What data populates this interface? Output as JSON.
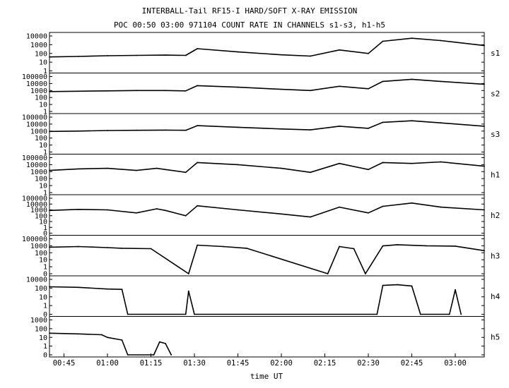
{
  "chart_data": {
    "type": "line",
    "title": "INTERBALL-Tail RF15-I HARD/SOFT X-RAY EMISSION",
    "subtitle": "POC 00:50 03:00 971104  COUNT RATE IN CHANNELS s1-s3, h1-h5",
    "xlabel": "time UT",
    "x_ticks": [
      "00:45",
      "01:00",
      "01:15",
      "01:30",
      "01:45",
      "02:00",
      "02:15",
      "02:30",
      "02:45",
      "03:00"
    ],
    "xlim": [
      "00:40",
      "03:10"
    ],
    "yscale": "log",
    "grid": false,
    "panels": [
      {
        "name": "s1",
        "ytick_labels": [
          "10000",
          "1000",
          "100",
          "10",
          "1"
        ],
        "x": [
          "00:40",
          "00:50",
          "01:00",
          "01:10",
          "01:20",
          "01:27",
          "01:31",
          "01:45",
          "02:00",
          "02:10",
          "02:20",
          "02:30",
          "02:35",
          "02:45",
          "02:55",
          "03:10"
        ],
        "values": [
          40,
          45,
          55,
          60,
          65,
          60,
          350,
          150,
          70,
          50,
          250,
          100,
          2500,
          5500,
          3000,
          800
        ]
      },
      {
        "name": "s2",
        "ytick_labels": [
          "100000",
          "10000",
          "1000",
          "100",
          "10",
          "1"
        ],
        "x": [
          "00:40",
          "00:50",
          "01:00",
          "01:10",
          "01:20",
          "01:27",
          "01:31",
          "01:45",
          "02:00",
          "02:10",
          "02:20",
          "02:30",
          "02:35",
          "02:45",
          "02:55",
          "03:10"
        ],
        "values": [
          700,
          800,
          900,
          1000,
          1000,
          900,
          5000,
          3000,
          1500,
          1000,
          4000,
          1800,
          20000,
          40000,
          20000,
          8000
        ]
      },
      {
        "name": "s3",
        "ytick_labels": [
          "100000",
          "10000",
          "1000",
          "100",
          "10",
          "1"
        ],
        "x": [
          "00:40",
          "00:50",
          "01:00",
          "01:10",
          "01:20",
          "01:27",
          "01:31",
          "01:45",
          "02:00",
          "02:10",
          "02:20",
          "02:30",
          "02:35",
          "02:45",
          "02:55",
          "03:10"
        ],
        "values": [
          900,
          1000,
          1200,
          1300,
          1400,
          1300,
          6000,
          3500,
          2000,
          1500,
          5000,
          2500,
          18000,
          30000,
          15000,
          5000
        ]
      },
      {
        "name": "h1",
        "ytick_labels": [
          "100000",
          "10000",
          "1000",
          "100",
          "10",
          "1"
        ],
        "x": [
          "00:40",
          "00:50",
          "01:00",
          "01:10",
          "01:17",
          "01:20",
          "01:27",
          "01:31",
          "01:45",
          "02:00",
          "02:10",
          "02:20",
          "02:30",
          "02:35",
          "02:45",
          "02:55",
          "03:10"
        ],
        "values": [
          1500,
          2500,
          3000,
          1500,
          3000,
          2000,
          800,
          20000,
          10000,
          3000,
          800,
          15000,
          2000,
          20000,
          15000,
          25000,
          6000
        ]
      },
      {
        "name": "h2",
        "ytick_labels": [
          "100000",
          "10000",
          "1000",
          "100",
          "10",
          "1",
          "0"
        ],
        "x": [
          "00:40",
          "00:50",
          "01:00",
          "01:10",
          "01:17",
          "01:20",
          "01:27",
          "01:31",
          "01:45",
          "02:00",
          "02:10",
          "02:20",
          "02:30",
          "02:35",
          "02:45",
          "02:55",
          "03:10"
        ],
        "values": [
          800,
          1200,
          1000,
          300,
          1500,
          800,
          100,
          5000,
          1000,
          200,
          60,
          3000,
          300,
          4000,
          15000,
          3000,
          1000
        ]
      },
      {
        "name": "h3",
        "ytick_labels": [
          "100000",
          "1000",
          "100",
          "10",
          "1",
          "0"
        ],
        "x": [
          "00:40",
          "00:50",
          "01:00",
          "01:05",
          "01:15",
          "01:28",
          "01:31",
          "01:40",
          "01:48",
          "02:16",
          "02:20",
          "02:25",
          "02:29",
          "02:35",
          "02:40",
          "02:50",
          "03:00",
          "03:10"
        ],
        "values": [
          400,
          600,
          300,
          200,
          150,
          0,
          1500,
          600,
          200,
          0,
          600,
          150,
          0,
          900,
          2000,
          1000,
          800,
          40
        ]
      },
      {
        "name": "h4",
        "ytick_labels": [
          "10000",
          "100",
          "10",
          "1",
          "0"
        ],
        "x": [
          "00:40",
          "00:50",
          "00:57",
          "01:00",
          "01:05",
          "01:07",
          "01:27",
          "01:28",
          "01:30",
          "02:33",
          "02:35",
          "02:40",
          "02:45",
          "02:48",
          "02:58",
          "03:00",
          "03:02"
        ],
        "values": [
          200,
          150,
          80,
          60,
          50,
          0,
          0,
          20,
          0,
          0,
          400,
          600,
          300,
          0,
          0,
          40,
          0
        ]
      },
      {
        "name": "h5",
        "ytick_labels": [
          "1000",
          "100",
          "10",
          "1",
          "0"
        ],
        "x": [
          "00:40",
          "00:50",
          "00:58",
          "01:00",
          "01:05",
          "01:07",
          "01:16",
          "01:18",
          "01:20",
          "01:22"
        ],
        "values": [
          30,
          25,
          20,
          10,
          5,
          0,
          0,
          3,
          2,
          0
        ]
      }
    ]
  }
}
